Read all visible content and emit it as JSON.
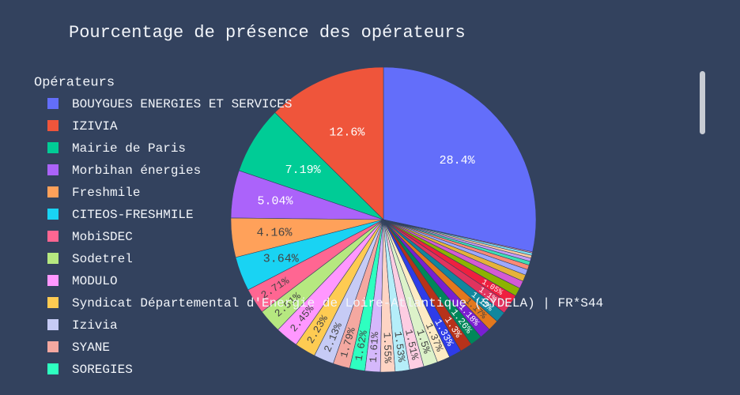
{
  "chart_data": {
    "type": "pie",
    "title": "Pourcentage de présence des opérateurs",
    "legend_title": "Opérateurs",
    "labels": [
      "BOUYGUES ENERGIES ET SERVICES",
      "IZIVIA",
      "Mairie de Paris",
      "Morbihan énergies",
      "Freshmile",
      "CITEOS-FRESHMILE",
      "MobiSDEC",
      "Sodetrel",
      "MODULO",
      "Syndicat Départemental d'Energie de Loire-Atlantique (SYDELA) | FR*S44",
      "Izivia",
      "SYANE",
      "SOREGIES",
      null,
      null,
      null,
      null,
      null,
      null,
      null,
      null,
      null,
      null,
      null,
      null,
      null,
      null,
      null,
      null,
      null,
      null,
      null,
      null,
      null,
      null,
      null,
      null
    ],
    "values": [
      28.4,
      12.6,
      7.19,
      5.04,
      4.16,
      3.64,
      2.71,
      2.51,
      2.45,
      2.23,
      2.13,
      1.79,
      1.62,
      1.61,
      1.55,
      1.53,
      1.51,
      1.5,
      1.37,
      1.33,
      1.3,
      1.26,
      1.18,
      1.17,
      1.15,
      1.1,
      1.05,
      0.9,
      0.8,
      0.7,
      0.6,
      0.5,
      0.4,
      0.35,
      0.3,
      0.25,
      0.12
    ],
    "value_labels": [
      "28.4%",
      "12.6%",
      "7.19%",
      "5.04%",
      "4.16%",
      "3.64%",
      "2.71%",
      "2.51%",
      "2.45%",
      "2.23%",
      "2.13%",
      "1.79%",
      "1.62%",
      "1.61%",
      "1.55%",
      "1.53%",
      "1.51%",
      "1.5%",
      "1.37%",
      "1.33%",
      "1.3%",
      "1.26%",
      "1.18%",
      "1.17%",
      "1.15%",
      "1.1%",
      "1.05%",
      null,
      null,
      null,
      null,
      null,
      null,
      null,
      null,
      null,
      null
    ],
    "colors": [
      "#636efa",
      "#ef553b",
      "#00cc96",
      "#ab63fa",
      "#ffa15a",
      "#19d3f3",
      "#ff6692",
      "#b6e880",
      "#ff97ff",
      "#fecb52",
      "#c6cbf5",
      "#f4a8a0",
      "#2effc0",
      "#d5b8fb",
      "#fed4c4",
      "#b5eef9",
      "#fdcde2",
      "#dcf2c9",
      "#fdebc4",
      "#2e3ce8",
      "#b7321a",
      "#00875a",
      "#7a1fd1",
      "#e3781d",
      "#11879e",
      "#e0335e",
      "#ef1f3f",
      "#8cb300",
      "#d45ad4",
      "#e6b23a",
      "#9ea8ff",
      "#ff8a75",
      "#3fe0b5",
      "#c49cf7",
      "#ffc99e",
      "#7fe6f8",
      "#ff9bb2"
    ],
    "direction": "counterclockwise"
  }
}
